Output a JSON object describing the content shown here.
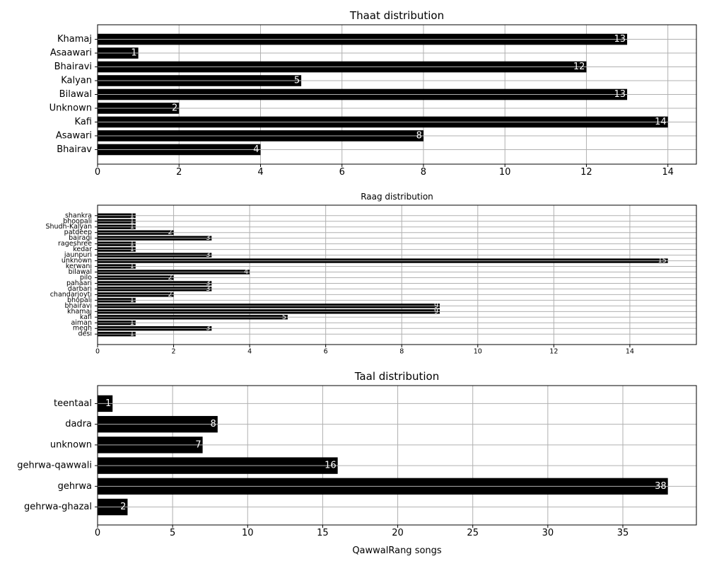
{
  "chart_data": [
    {
      "type": "bar",
      "orientation": "horizontal",
      "title": "Thaat distribution",
      "xlabel": "",
      "ylabel": "",
      "xlim": [
        0,
        14.7
      ],
      "xticks": [
        "0",
        "2",
        "4",
        "6",
        "8",
        "10",
        "12",
        "14"
      ],
      "grid": true,
      "bar_color": "#000000",
      "label_color": "#ffffff",
      "categories": [
        "Bhairav",
        "Asawari",
        "Kafi",
        "Unknown",
        "Bilawal",
        "Kalyan",
        "Bhairavi",
        "Asaawari",
        "Khamaj"
      ],
      "values": [
        4,
        8,
        14,
        2,
        13,
        5,
        12,
        1,
        13
      ]
    },
    {
      "type": "bar",
      "orientation": "horizontal",
      "title": "Raag distribution",
      "xlabel": "",
      "ylabel": "",
      "xlim": [
        0,
        15.75
      ],
      "xticks": [
        "0",
        "2",
        "4",
        "6",
        "8",
        "10",
        "12",
        "14"
      ],
      "grid": true,
      "bar_color": "#000000",
      "label_color": "#ffffff",
      "categories": [
        "desi",
        "megh",
        "aiman",
        "kafi",
        "khamaj",
        "bhairavi",
        "bhopali",
        "chandarjoyti",
        "darbari",
        "pahaari",
        "pilo",
        "bilawal",
        "kerwani",
        "unknown",
        "jaunpuri",
        "kedar",
        "rageshree",
        "bairagi",
        "patdeep",
        "Shudh-Kalyan",
        "bhoopali",
        "shankra"
      ],
      "values": [
        1,
        3,
        1,
        5,
        9,
        9,
        1,
        2,
        3,
        3,
        2,
        4,
        1,
        15,
        3,
        1,
        1,
        3,
        2,
        1,
        1,
        1
      ]
    },
    {
      "type": "bar",
      "orientation": "horizontal",
      "title": "Taal distribution",
      "xlabel": "QawwalRang songs",
      "ylabel": "",
      "xlim": [
        0,
        39.9
      ],
      "xticks": [
        "0",
        "5",
        "10",
        "15",
        "20",
        "25",
        "30",
        "35"
      ],
      "grid": true,
      "bar_color": "#000000",
      "label_color": "#ffffff",
      "categories": [
        "gehrwa-ghazal",
        "gehrwa",
        "gehrwa-qawwali",
        "unknown",
        "dadra",
        "teentaal"
      ],
      "values": [
        2,
        38,
        16,
        7,
        8,
        1
      ]
    }
  ]
}
